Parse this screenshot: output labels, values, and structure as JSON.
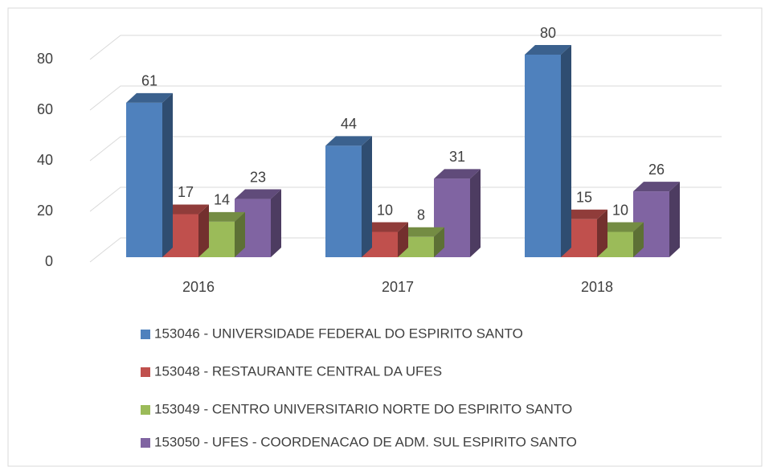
{
  "chart_data": {
    "type": "bar3d",
    "categories": [
      "2016",
      "2017",
      "2018"
    ],
    "series": [
      {
        "name": "153046 - UNIVERSIDADE FEDERAL DO ESPIRITO SANTO",
        "color": "#4f81bd",
        "values": [
          61,
          44,
          80
        ]
      },
      {
        "name": "153048 - RESTAURANTE CENTRAL DA UFES",
        "color": "#c0504d",
        "values": [
          17,
          10,
          15
        ]
      },
      {
        "name": "153049 - CENTRO UNIVERSITARIO NORTE DO ESPIRITO SANTO",
        "color": "#9bbb59",
        "values": [
          14,
          8,
          10
        ]
      },
      {
        "name": "153050 - UFES - COORDENACAO DE ADM. SUL ESPIRITO SANTO",
        "color": "#8064a2",
        "values": [
          23,
          31,
          26
        ]
      }
    ],
    "ylim": [
      0,
      80
    ],
    "yticks": [
      0,
      20,
      40,
      60,
      80
    ],
    "grid": true,
    "legend": "bottom"
  }
}
